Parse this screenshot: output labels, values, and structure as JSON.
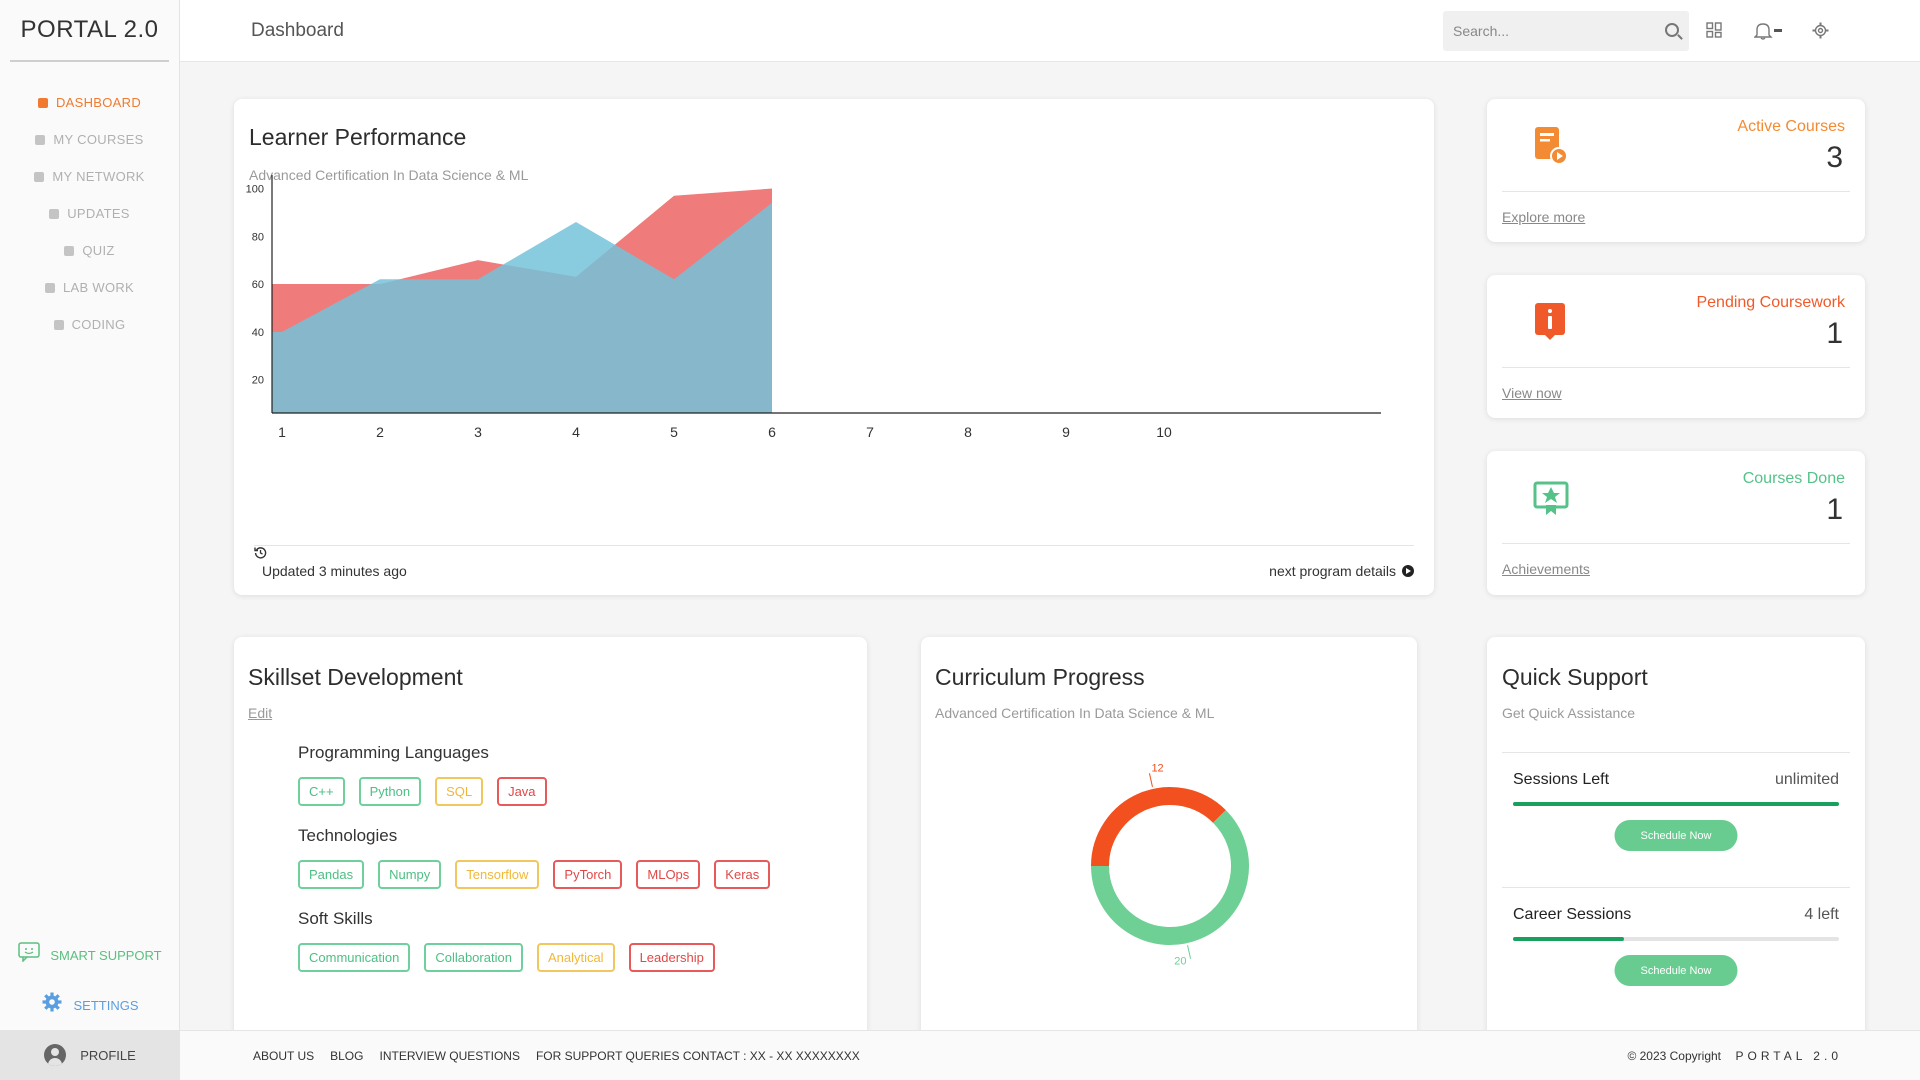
{
  "app": {
    "logo": "PORTAL 2.0"
  },
  "sidebar": {
    "items": [
      {
        "label": "DASHBOARD",
        "active": true
      },
      {
        "label": "MY COURSES",
        "active": false
      },
      {
        "label": "MY NETWORK",
        "active": false
      },
      {
        "label": "UPDATES",
        "active": false
      },
      {
        "label": "QUIZ",
        "active": false
      },
      {
        "label": "LAB WORK",
        "active": false
      },
      {
        "label": "CODING",
        "active": false
      }
    ],
    "smart_support": "SMART SUPPORT",
    "settings": "SETTINGS",
    "profile": "PROFILE"
  },
  "header": {
    "title": "Dashboard",
    "search_placeholder": "Search...",
    "icons": [
      "search-icon",
      "grid-icon",
      "bell-icon",
      "gear-icon"
    ]
  },
  "performance": {
    "title": "Learner Performance",
    "subtitle": "Advanced Certification In Data Science & ML",
    "updated": "Updated 3 minutes ago",
    "next_link": "next program details"
  },
  "chart_data": {
    "type": "area",
    "x": [
      1,
      2,
      3,
      4,
      5,
      6,
      7,
      8,
      9,
      10
    ],
    "xlim": [
      1,
      10
    ],
    "ylim": [
      6,
      104
    ],
    "yticks": [
      20,
      40,
      60,
      80,
      100
    ],
    "series": [
      {
        "color": "#f07b7b",
        "points": [
          [
            1,
            60
          ],
          [
            2,
            60
          ],
          [
            3,
            70
          ],
          [
            4,
            63
          ],
          [
            5,
            97
          ],
          [
            6,
            100
          ]
        ]
      },
      {
        "color": "#74c2d9",
        "points": [
          [
            1,
            40
          ],
          [
            2,
            62
          ],
          [
            3,
            62
          ],
          [
            4,
            86
          ],
          [
            5,
            62
          ],
          [
            6,
            94
          ]
        ]
      }
    ],
    "grid": false
  },
  "stats": [
    {
      "label": "Active Courses",
      "value": "3",
      "link": "Explore more",
      "color": "#f28b33",
      "icon": "course-play-icon"
    },
    {
      "label": "Pending Coursework",
      "value": "1",
      "link": "View now",
      "color": "#f05a2a",
      "icon": "alert-document-icon"
    },
    {
      "label": "Courses Done",
      "value": "1",
      "link": "Achievements",
      "color": "#56c28a",
      "icon": "certificate-icon"
    }
  ],
  "skills": {
    "title": "Skillset Development",
    "edit": "Edit",
    "groups": [
      {
        "title": "Programming Languages",
        "tags": [
          {
            "label": "C++",
            "color": "green"
          },
          {
            "label": "Python",
            "color": "green"
          },
          {
            "label": "SQL",
            "color": "yellow"
          },
          {
            "label": "Java",
            "color": "red"
          }
        ]
      },
      {
        "title": "Technologies",
        "tags": [
          {
            "label": "Pandas",
            "color": "green"
          },
          {
            "label": "Numpy",
            "color": "green"
          },
          {
            "label": "Tensorflow",
            "color": "yellow"
          },
          {
            "label": "PyTorch",
            "color": "red"
          },
          {
            "label": "MLOps",
            "color": "red"
          },
          {
            "label": "Keras",
            "color": "red"
          }
        ]
      },
      {
        "title": "Soft Skills",
        "tags": [
          {
            "label": "Communication",
            "color": "green"
          },
          {
            "label": "Collaboration",
            "color": "green"
          },
          {
            "label": "Analytical",
            "color": "yellow"
          },
          {
            "label": "Leadership",
            "color": "red"
          }
        ]
      }
    ]
  },
  "curriculum": {
    "title": "Curriculum Progress",
    "subtitle": "Advanced Certification In Data Science & ML",
    "donut": [
      {
        "value": 12,
        "label": "12",
        "color": "#f2501e"
      },
      {
        "value": 20,
        "label": "20",
        "color": "#6ed095"
      }
    ]
  },
  "support": {
    "title": "Quick Support",
    "subtitle": "Get Quick  Assistance",
    "sessions": [
      {
        "label": "Sessions Left",
        "value": "unlimited",
        "progress": 1.0,
        "button": "Schedule Now"
      },
      {
        "label": "Career Sessions",
        "value": "4 left",
        "progress": 0.34,
        "button": "Schedule Now"
      }
    ]
  },
  "footer": {
    "links": [
      "ABOUT US",
      "BLOG",
      "INTERVIEW QUESTIONS",
      "FOR SUPPORT QUERIES CONTACT : XX - XX XXXXXXXX"
    ],
    "copyright": "© 2023 Copyright",
    "brand": "PORTAL 2.0"
  }
}
